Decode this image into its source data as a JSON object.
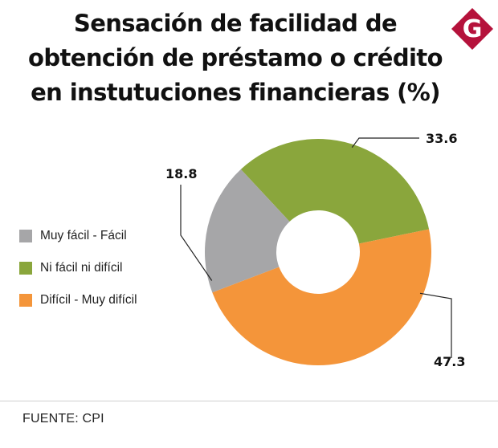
{
  "header": {
    "title_lines": [
      "Sensación de facilidad de",
      "obtención de préstamo o crédito",
      "en instutuciones financieras (%)"
    ]
  },
  "logo": {
    "letter": "G",
    "color": "#b5123b"
  },
  "legend": {
    "items": [
      {
        "label": "Muy fácil - Fácil",
        "color": "#a6a6a8"
      },
      {
        "label": "Ni fácil ni difícil",
        "color": "#8aa63c"
      },
      {
        "label": "Difícil - Muy difícil",
        "color": "#f4953a"
      }
    ]
  },
  "chart_data": {
    "type": "pie",
    "variant": "donut",
    "title": "Sensación de facilidad de obtención de préstamo o crédito en instutuciones financieras (%)",
    "categories": [
      "Muy fácil - Fácil",
      "Ni fácil ni difícil",
      "Difícil - Muy difícil"
    ],
    "values": [
      18.8,
      33.6,
      47.3
    ],
    "value_labels": [
      "18.8",
      "33.6",
      "47.3"
    ],
    "colors": [
      "#a6a6a8",
      "#8aa63c",
      "#f4953a"
    ],
    "legend_position": "left"
  },
  "footer": {
    "source": "FUENTE: CPI"
  }
}
